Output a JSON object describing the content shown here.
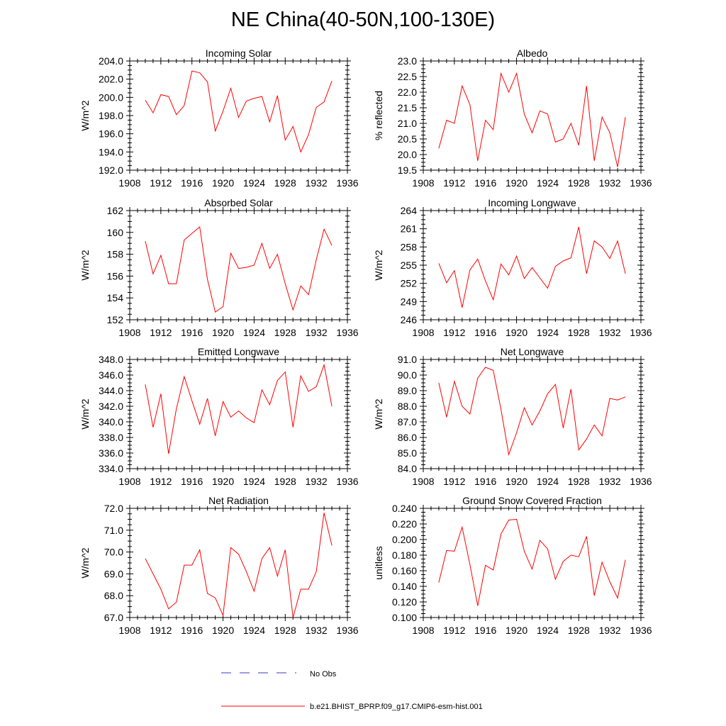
{
  "figure": {
    "title": "NE China(40-50N,100-130E)"
  },
  "legend": {
    "entries": [
      {
        "label": "No Obs",
        "color": "#3a3acc",
        "dash": true
      },
      {
        "label": "b.e21.BHIST_BPRP.f09_g17.CMIP6-esm-hist.001",
        "color": "#ff0000",
        "dash": false
      }
    ]
  },
  "chart_data": [
    {
      "type": "line",
      "title": "Incoming Solar",
      "ylabel": "W/m^2",
      "xlim": [
        1908,
        1936
      ],
      "xticks": [
        1908,
        1912,
        1916,
        1920,
        1924,
        1928,
        1932,
        1936
      ],
      "ylim": [
        192.0,
        204.0
      ],
      "yticks": [
        192.0,
        194.0,
        196.0,
        198.0,
        200.0,
        202.0,
        204.0
      ],
      "ydecimals": 1,
      "x": [
        1910,
        1911,
        1912,
        1913,
        1914,
        1915,
        1916,
        1917,
        1918,
        1919,
        1920,
        1921,
        1922,
        1923,
        1924,
        1925,
        1926,
        1927,
        1928,
        1929,
        1930,
        1931,
        1932,
        1933,
        1934
      ],
      "series": [
        {
          "name": "b.e21.BHIST_BPRP.f09_g17.CMIP6-esm-hist.001",
          "color": "#ff0000",
          "values": [
            199.7,
            198.3,
            200.3,
            200.1,
            198.1,
            199.1,
            202.9,
            202.7,
            201.7,
            196.3,
            198.5,
            201.0,
            197.8,
            199.6,
            199.9,
            200.1,
            197.3,
            200.2,
            195.3,
            196.8,
            194.0,
            195.9,
            198.9,
            199.5,
            201.8
          ]
        }
      ]
    },
    {
      "type": "line",
      "title": "Albedo",
      "ylabel": "% reflected",
      "xlim": [
        1908,
        1936
      ],
      "xticks": [
        1908,
        1912,
        1916,
        1920,
        1924,
        1928,
        1932,
        1936
      ],
      "ylim": [
        19.5,
        23.0
      ],
      "yticks": [
        19.5,
        20.0,
        20.5,
        21.0,
        21.5,
        22.0,
        22.5,
        23.0
      ],
      "ydecimals": 1,
      "x": [
        1910,
        1911,
        1912,
        1913,
        1914,
        1915,
        1916,
        1917,
        1918,
        1919,
        1920,
        1921,
        1922,
        1923,
        1924,
        1925,
        1926,
        1927,
        1928,
        1929,
        1930,
        1931,
        1932,
        1933,
        1934
      ],
      "series": [
        {
          "name": "b.e21.BHIST_BPRP.f09_g17.CMIP6-esm-hist.001",
          "color": "#ff0000",
          "values": [
            20.2,
            21.1,
            21.0,
            22.2,
            21.6,
            19.8,
            21.1,
            20.8,
            22.6,
            22.0,
            22.6,
            21.3,
            20.7,
            21.4,
            21.3,
            20.4,
            20.5,
            21.0,
            20.3,
            22.2,
            19.8,
            21.2,
            20.7,
            19.6,
            21.2
          ]
        }
      ]
    },
    {
      "type": "line",
      "title": "Absorbed Solar",
      "ylabel": "W/m^2",
      "xlim": [
        1908,
        1936
      ],
      "xticks": [
        1908,
        1912,
        1916,
        1920,
        1924,
        1928,
        1932,
        1936
      ],
      "ylim": [
        152,
        162
      ],
      "yticks": [
        152,
        154,
        156,
        158,
        160,
        162
      ],
      "ydecimals": 0,
      "x": [
        1910,
        1911,
        1912,
        1913,
        1914,
        1915,
        1916,
        1917,
        1918,
        1919,
        1920,
        1921,
        1922,
        1923,
        1924,
        1925,
        1926,
        1927,
        1928,
        1929,
        1930,
        1931,
        1932,
        1933,
        1934
      ],
      "series": [
        {
          "name": "b.e21.BHIST_BPRP.f09_g17.CMIP6-esm-hist.001",
          "color": "#ff0000",
          "values": [
            159.2,
            156.2,
            157.9,
            155.3,
            155.3,
            159.3,
            159.9,
            160.5,
            155.7,
            152.7,
            153.2,
            158.1,
            156.7,
            156.8,
            157.0,
            159.0,
            156.7,
            158.0,
            155.3,
            152.9,
            155.1,
            154.3,
            157.5,
            160.3,
            158.8
          ]
        }
      ]
    },
    {
      "type": "line",
      "title": "Incoming Longwave",
      "ylabel": "W/m^2",
      "xlim": [
        1908,
        1936
      ],
      "xticks": [
        1908,
        1912,
        1916,
        1920,
        1924,
        1928,
        1932,
        1936
      ],
      "ylim": [
        246,
        264
      ],
      "yticks": [
        246,
        249,
        252,
        255,
        258,
        261,
        264
      ],
      "ydecimals": 0,
      "x": [
        1910,
        1911,
        1912,
        1913,
        1914,
        1915,
        1916,
        1917,
        1918,
        1919,
        1920,
        1921,
        1922,
        1923,
        1924,
        1925,
        1926,
        1927,
        1928,
        1929,
        1930,
        1931,
        1932,
        1933,
        1934
      ],
      "series": [
        {
          "name": "b.e21.BHIST_BPRP.f09_g17.CMIP6-esm-hist.001",
          "color": "#ff0000",
          "values": [
            255.3,
            252.1,
            254.1,
            248.0,
            254.2,
            256.0,
            252.4,
            249.3,
            255.2,
            253.4,
            256.5,
            252.8,
            254.6,
            252.9,
            251.2,
            254.8,
            255.7,
            256.2,
            261.3,
            253.6,
            259.0,
            258.0,
            256.1,
            259.0,
            253.6
          ]
        }
      ]
    },
    {
      "type": "line",
      "title": "Emitted Longwave",
      "ylabel": "W/m^2",
      "xlim": [
        1908,
        1936
      ],
      "xticks": [
        1908,
        1912,
        1916,
        1920,
        1924,
        1928,
        1932,
        1936
      ],
      "ylim": [
        334.0,
        348.0
      ],
      "yticks": [
        334.0,
        336.0,
        338.0,
        340.0,
        342.0,
        344.0,
        346.0,
        348.0
      ],
      "ydecimals": 1,
      "x": [
        1910,
        1911,
        1912,
        1913,
        1914,
        1915,
        1916,
        1917,
        1918,
        1919,
        1920,
        1921,
        1922,
        1923,
        1924,
        1925,
        1926,
        1927,
        1928,
        1929,
        1930,
        1931,
        1932,
        1933,
        1934
      ],
      "series": [
        {
          "name": "b.e21.BHIST_BPRP.f09_g17.CMIP6-esm-hist.001",
          "color": "#ff0000",
          "values": [
            344.8,
            339.3,
            343.6,
            335.9,
            341.7,
            345.8,
            342.7,
            339.7,
            343.0,
            338.2,
            342.6,
            340.6,
            341.4,
            340.5,
            339.9,
            344.1,
            342.2,
            345.3,
            346.4,
            339.3,
            345.9,
            343.9,
            344.5,
            347.3,
            342.0
          ]
        }
      ]
    },
    {
      "type": "line",
      "title": "Net Longwave",
      "ylabel": "W/m^2",
      "xlim": [
        1908,
        1936
      ],
      "xticks": [
        1908,
        1912,
        1916,
        1920,
        1924,
        1928,
        1932,
        1936
      ],
      "ylim": [
        84.0,
        91.0
      ],
      "yticks": [
        84.0,
        85.0,
        86.0,
        87.0,
        88.0,
        89.0,
        90.0,
        91.0
      ],
      "ydecimals": 1,
      "x": [
        1910,
        1911,
        1912,
        1913,
        1914,
        1915,
        1916,
        1917,
        1918,
        1919,
        1920,
        1921,
        1922,
        1923,
        1924,
        1925,
        1926,
        1927,
        1928,
        1929,
        1930,
        1931,
        1932,
        1933,
        1934
      ],
      "series": [
        {
          "name": "b.e21.BHIST_BPRP.f09_g17.CMIP6-esm-hist.001",
          "color": "#ff0000",
          "values": [
            89.5,
            87.3,
            89.6,
            88.0,
            87.5,
            89.8,
            90.5,
            90.3,
            87.8,
            84.9,
            86.3,
            87.9,
            86.8,
            87.7,
            88.8,
            89.4,
            86.6,
            89.1,
            85.2,
            85.9,
            86.8,
            86.1,
            88.5,
            88.4,
            88.6
          ]
        }
      ]
    },
    {
      "type": "line",
      "title": "Net Radiation",
      "ylabel": "W/m^2",
      "xlim": [
        1908,
        1936
      ],
      "xticks": [
        1908,
        1912,
        1916,
        1920,
        1924,
        1928,
        1932,
        1936
      ],
      "ylim": [
        67.0,
        72.0
      ],
      "yticks": [
        67.0,
        68.0,
        69.0,
        70.0,
        71.0,
        72.0
      ],
      "ydecimals": 1,
      "x": [
        1910,
        1911,
        1912,
        1913,
        1914,
        1915,
        1916,
        1917,
        1918,
        1919,
        1920,
        1921,
        1922,
        1923,
        1924,
        1925,
        1926,
        1927,
        1928,
        1929,
        1930,
        1931,
        1932,
        1933,
        1934
      ],
      "series": [
        {
          "name": "b.e21.BHIST_BPRP.f09_g17.CMIP6-esm-hist.001",
          "color": "#ff0000",
          "values": [
            69.7,
            69.0,
            68.3,
            67.4,
            67.7,
            69.4,
            69.4,
            70.1,
            68.1,
            67.9,
            67.1,
            70.2,
            69.9,
            69.1,
            68.2,
            69.7,
            70.2,
            68.9,
            70.1,
            67.0,
            68.3,
            68.3,
            69.1,
            71.8,
            70.3
          ]
        }
      ]
    },
    {
      "type": "line",
      "title": "Ground Snow Covered Fraction",
      "ylabel": "unitless",
      "xlim": [
        1908,
        1936
      ],
      "xticks": [
        1908,
        1912,
        1916,
        1920,
        1924,
        1928,
        1932,
        1936
      ],
      "ylim": [
        0.1,
        0.24
      ],
      "yticks": [
        0.1,
        0.12,
        0.14,
        0.16,
        0.18,
        0.2,
        0.22,
        0.24
      ],
      "ydecimals": 3,
      "x": [
        1910,
        1911,
        1912,
        1913,
        1914,
        1915,
        1916,
        1917,
        1918,
        1919,
        1920,
        1921,
        1922,
        1923,
        1924,
        1925,
        1926,
        1927,
        1928,
        1929,
        1930,
        1931,
        1932,
        1933,
        1934
      ],
      "series": [
        {
          "name": "b.e21.BHIST_BPRP.f09_g17.CMIP6-esm-hist.001",
          "color": "#ff0000",
          "values": [
            0.145,
            0.186,
            0.185,
            0.216,
            0.168,
            0.115,
            0.167,
            0.161,
            0.207,
            0.225,
            0.226,
            0.185,
            0.162,
            0.199,
            0.188,
            0.149,
            0.172,
            0.18,
            0.178,
            0.204,
            0.128,
            0.171,
            0.146,
            0.125,
            0.174
          ]
        }
      ]
    }
  ]
}
